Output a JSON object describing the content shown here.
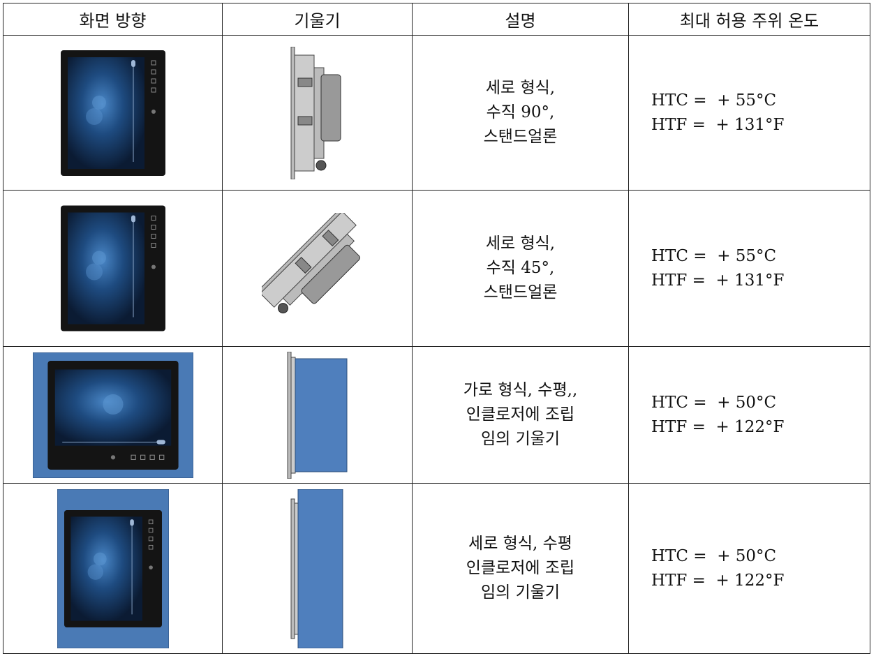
{
  "table": {
    "headers": [
      "화면 방향",
      "기울기",
      "설명",
      "최대 허용 주위 온도"
    ],
    "rows": [
      {
        "description": [
          "세로 형식,",
          "수직 90°,",
          "스탠드얼론"
        ],
        "temperature": [
          "HTC =  + 55°C",
          "HTF =  + 131°F"
        ]
      },
      {
        "description": [
          "세로 형식,",
          "수직 45°,",
          "스탠드얼론"
        ],
        "temperature": [
          "HTC =  + 55°C",
          "HTF =  + 131°F"
        ]
      },
      {
        "description": [
          "가로 형식, 수평,,",
          "인클로저에 조립",
          "임의 기울기"
        ],
        "temperature": [
          "HTC =  + 50°C",
          "HTF =  + 122°F"
        ]
      },
      {
        "description": [
          "세로 형식, 수평",
          "인클로저에 조립",
          "임의 기울기"
        ],
        "temperature": [
          "HTC =  + 50°C",
          "HTF =  + 122°F"
        ]
      }
    ]
  }
}
